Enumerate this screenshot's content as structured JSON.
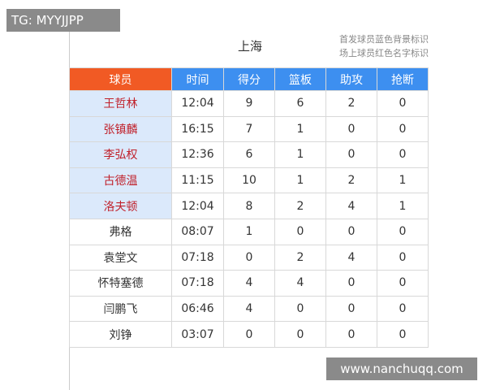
{
  "watermark_top": "TG: MYYJJPP",
  "watermark_bottom": "www.nanchuqq.com",
  "header": {
    "title": "上海",
    "notes": [
      "首发球员蓝色背景标识",
      "场上球员红色名字标识"
    ]
  },
  "table": {
    "columns": [
      "球员",
      "时间",
      "得分",
      "篮板",
      "助攻",
      "抢断"
    ],
    "rows": [
      [
        "王哲林",
        "12:04",
        "9",
        "6",
        "2",
        "0"
      ],
      [
        "张镇麟",
        "16:15",
        "7",
        "1",
        "0",
        "0"
      ],
      [
        "李弘权",
        "12:36",
        "6",
        "1",
        "0",
        "0"
      ],
      [
        "古德温",
        "11:15",
        "10",
        "1",
        "2",
        "1"
      ],
      [
        "洛夫顿",
        "12:04",
        "8",
        "2",
        "4",
        "1"
      ],
      [
        "弗格",
        "08:07",
        "1",
        "0",
        "0",
        "0"
      ],
      [
        "袁堂文",
        "07:18",
        "0",
        "2",
        "4",
        "0"
      ],
      [
        "怀特塞德",
        "07:18",
        "4",
        "4",
        "0",
        "0"
      ],
      [
        "闫鹏飞",
        "06:46",
        "4",
        "0",
        "0",
        "0"
      ],
      [
        "刘铮",
        "03:07",
        "0",
        "0",
        "0",
        "0"
      ]
    ]
  }
}
